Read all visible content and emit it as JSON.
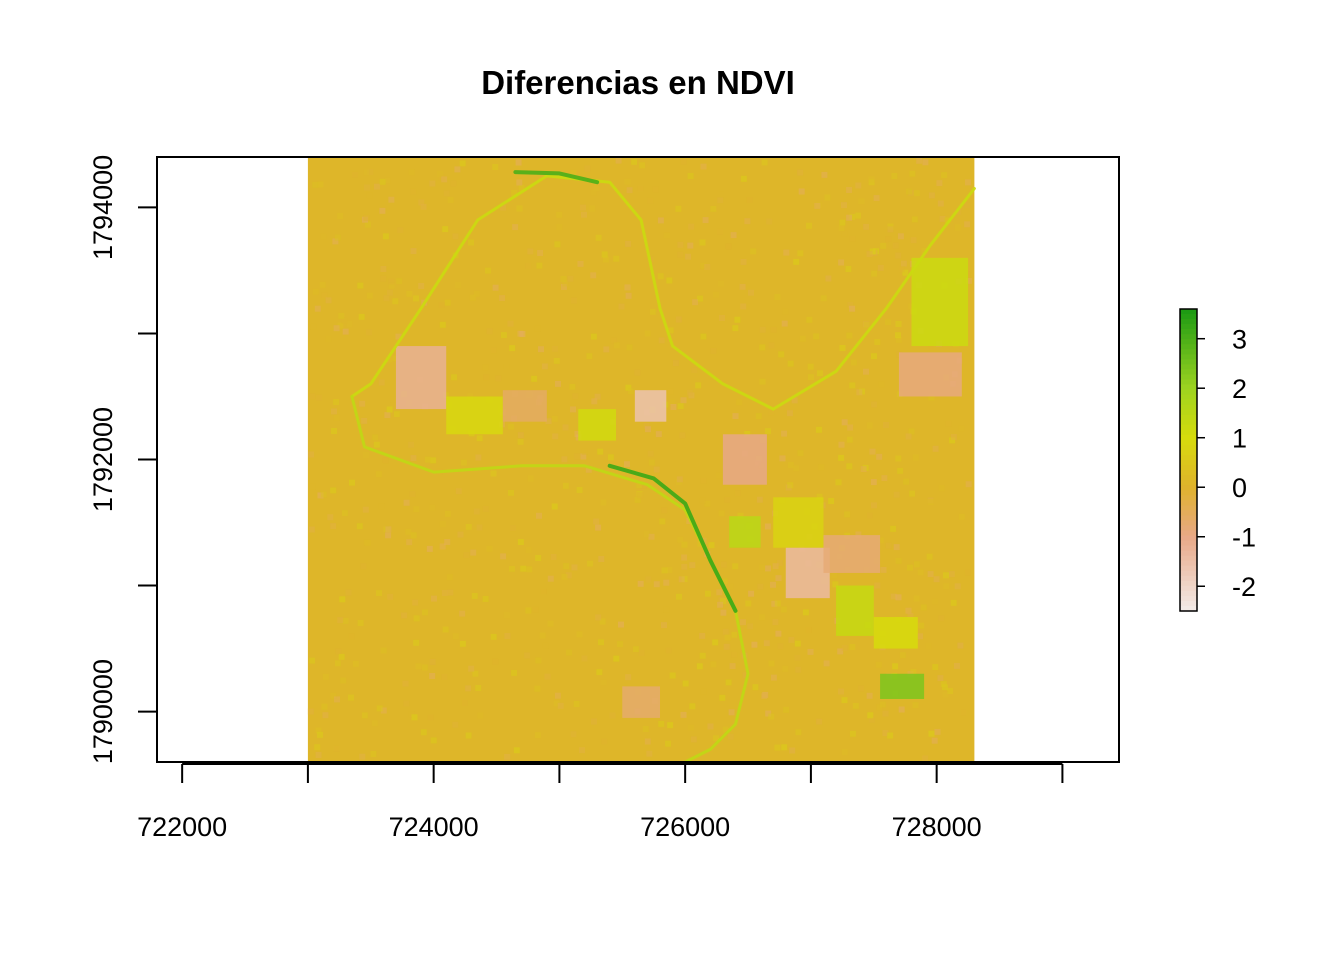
{
  "chart_data": {
    "type": "heatmap",
    "title": "Diferencias en NDVI",
    "xlabel": "",
    "ylabel": "",
    "xlim": [
      721800,
      729450
    ],
    "ylim": [
      1789600,
      1794400
    ],
    "x_ticks": [
      722000,
      723000,
      724000,
      725000,
      726000,
      727000,
      728000,
      729000
    ],
    "x_tick_labels": [
      "722000",
      "",
      "724000",
      "",
      "726000",
      "",
      "728000",
      ""
    ],
    "y_ticks": [
      1790000,
      1791000,
      1792000,
      1793000,
      1794000
    ],
    "y_tick_labels": [
      "1790000",
      "",
      "1792000",
      "",
      "1794000"
    ],
    "raster_extent": {
      "xmin": 723000,
      "xmax": 728300,
      "ymin": 1789600,
      "ymax": 1794400
    },
    "value_range": [
      -2.5,
      3.6
    ],
    "background_value": 0.1,
    "colorbar": {
      "ticks": [
        3,
        2,
        1,
        0,
        -1,
        -2
      ],
      "tick_labels": [
        "3",
        "2",
        "1",
        "0",
        "-1",
        "-2"
      ]
    },
    "colors": {
      "low": "#f3ece9",
      "neg": "#e8a887",
      "zero": "#dfb22c",
      "pos1": "#d7dc0c",
      "pos2": "#9dd320",
      "high": "#1a9913"
    },
    "features": {
      "rivers": [
        {
          "name": "",
          "value": 1.2,
          "points": [
            [
              723350,
              1792500
            ],
            [
              723500,
              1792600
            ],
            [
              723900,
              1793200
            ],
            [
              724350,
              1793900
            ],
            [
              724900,
              1794250
            ],
            [
              725400,
              1794200
            ],
            [
              725650,
              1793900
            ],
            [
              725800,
              1793200
            ],
            [
              725900,
              1792900
            ],
            [
              726300,
              1792600
            ],
            [
              726700,
              1792400
            ],
            [
              727200,
              1792700
            ],
            [
              727600,
              1793200
            ],
            [
              727950,
              1793700
            ],
            [
              728300,
              1794150
            ]
          ]
        },
        {
          "name": "",
          "value": 1.4,
          "points": [
            [
              723350,
              1792500
            ],
            [
              723450,
              1792100
            ],
            [
              724000,
              1791900
            ],
            [
              724700,
              1791950
            ],
            [
              725200,
              1791950
            ],
            [
              725700,
              1791800
            ],
            [
              726000,
              1791600
            ],
            [
              726200,
              1791200
            ],
            [
              726400,
              1790800
            ],
            [
              726500,
              1790300
            ],
            [
              726400,
              1789900
            ],
            [
              726200,
              1789700
            ],
            [
              726000,
              1789600
            ]
          ]
        },
        {
          "name": "",
          "value": 3.2,
          "points": [
            [
              725400,
              1791950
            ],
            [
              725750,
              1791850
            ],
            [
              726000,
              1791650
            ],
            [
              726200,
              1791200
            ],
            [
              726400,
              1790800
            ]
          ]
        },
        {
          "name": "",
          "value": 3.0,
          "points": [
            [
              724650,
              1794280
            ],
            [
              725000,
              1794270
            ],
            [
              725300,
              1794200
            ]
          ]
        }
      ],
      "patches": [
        {
          "x": 723700,
          "y": 1792400,
          "w": 400,
          "h": 500,
          "value": -1.2
        },
        {
          "x": 724100,
          "y": 1792200,
          "w": 450,
          "h": 300,
          "value": 0.9
        },
        {
          "x": 724550,
          "y": 1792300,
          "w": 350,
          "h": 250,
          "value": -0.6
        },
        {
          "x": 725150,
          "y": 1792150,
          "w": 300,
          "h": 250,
          "value": 1.1
        },
        {
          "x": 725600,
          "y": 1792300,
          "w": 250,
          "h": 250,
          "value": -1.6
        },
        {
          "x": 726300,
          "y": 1791800,
          "w": 350,
          "h": 400,
          "value": -1.0
        },
        {
          "x": 726700,
          "y": 1791300,
          "w": 400,
          "h": 400,
          "value": 0.8
        },
        {
          "x": 726800,
          "y": 1790900,
          "w": 350,
          "h": 400,
          "value": -1.4
        },
        {
          "x": 727100,
          "y": 1791100,
          "w": 450,
          "h": 300,
          "value": -0.8
        },
        {
          "x": 727200,
          "y": 1790600,
          "w": 300,
          "h": 400,
          "value": 1.3
        },
        {
          "x": 727500,
          "y": 1790500,
          "w": 350,
          "h": 250,
          "value": 1.0
        },
        {
          "x": 727550,
          "y": 1790100,
          "w": 350,
          "h": 200,
          "value": 2.4
        },
        {
          "x": 727800,
          "y": 1792900,
          "w": 450,
          "h": 700,
          "value": 1.2
        },
        {
          "x": 727700,
          "y": 1792500,
          "w": 500,
          "h": 350,
          "value": -0.9
        },
        {
          "x": 726350,
          "y": 1791300,
          "w": 250,
          "h": 250,
          "value": 1.5
        },
        {
          "x": 725500,
          "y": 1789950,
          "w": 300,
          "h": 250,
          "value": -0.7
        }
      ]
    }
  }
}
